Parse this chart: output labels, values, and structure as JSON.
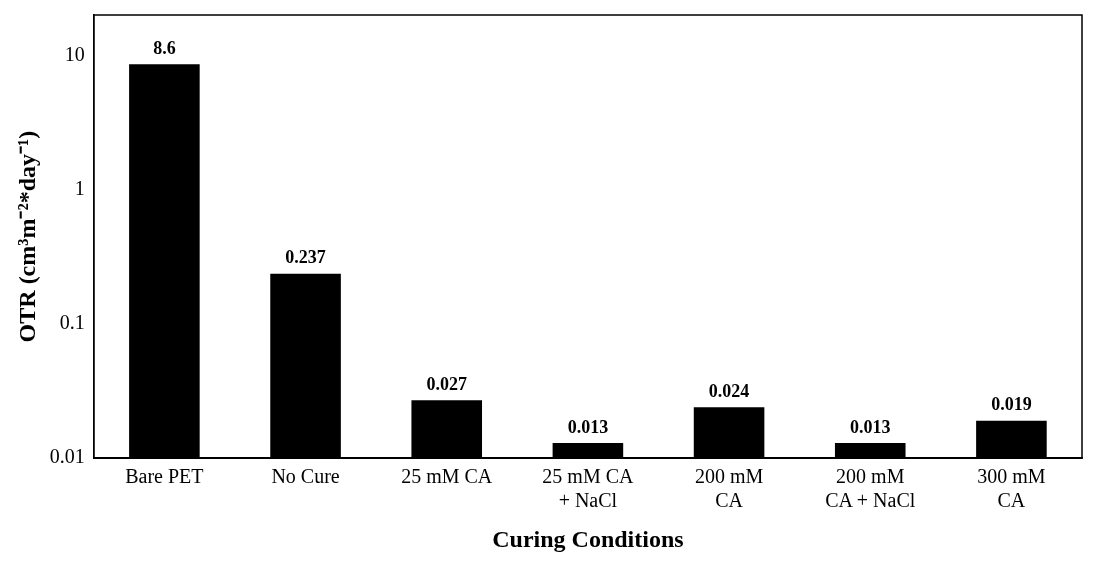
{
  "chart_data": {
    "type": "bar",
    "xlabel": "Curing Conditions",
    "ylabel": "OTR (cm³m⁻²*day⁻¹)",
    "categories": [
      "Bare PET",
      "No Cure",
      "25 mM CA",
      "25 mM CA\n+ NaCl",
      "200 mM\nCA",
      "200 mM\nCA + NaCl",
      "300 mM\nCA"
    ],
    "values": [
      8.6,
      0.237,
      0.027,
      0.013,
      0.024,
      0.013,
      0.019
    ],
    "color": "#000000",
    "log": true,
    "ylim": [
      0.01,
      20
    ],
    "yticks": [
      0.01,
      0.1,
      1,
      10
    ],
    "grid": false,
    "legend": false,
    "data_labels": true
  }
}
